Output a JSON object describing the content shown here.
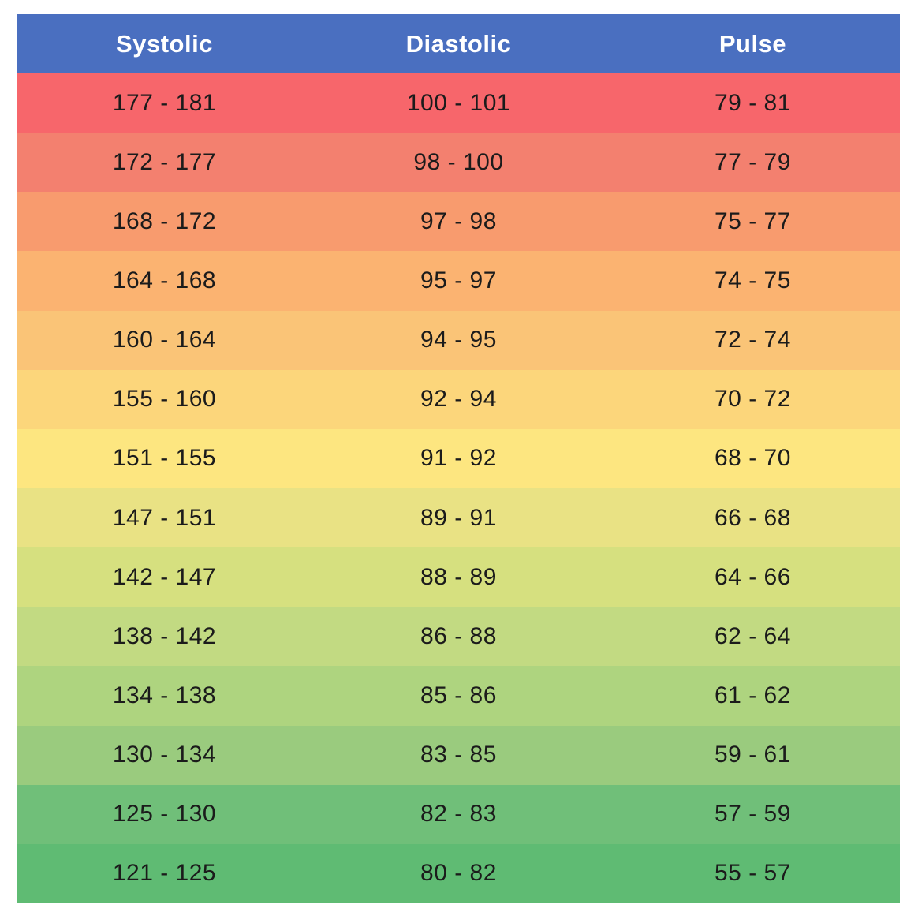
{
  "chart_data": {
    "type": "table",
    "columns": [
      "Systolic",
      "Diastolic",
      "Pulse"
    ],
    "rows": [
      [
        "177 - 181",
        "100 - 101",
        "79 - 81"
      ],
      [
        "172 - 177",
        "98 - 100",
        "77 - 79"
      ],
      [
        "168 - 172",
        "97 - 98",
        "75 - 77"
      ],
      [
        "164 - 168",
        "95 - 97",
        "74 - 75"
      ],
      [
        "160 - 164",
        "94 - 95",
        "72 - 74"
      ],
      [
        "155 - 160",
        "92 - 94",
        "70 - 72"
      ],
      [
        "151 - 155",
        "91 - 92",
        "68 - 70"
      ],
      [
        "147 - 151",
        "89 - 91",
        "66 - 68"
      ],
      [
        "142 - 147",
        "88 - 89",
        "64 - 66"
      ],
      [
        "138 - 142",
        "86 - 88",
        "62 - 64"
      ],
      [
        "134 - 138",
        "85 - 86",
        "61 - 62"
      ],
      [
        "130 - 134",
        "83 - 85",
        "59 - 61"
      ],
      [
        "125 - 130",
        "82 - 83",
        "57 - 59"
      ],
      [
        "121 - 125",
        "80 - 82",
        "55 - 57"
      ]
    ],
    "row_colors": [
      "#f7666b",
      "#f3806f",
      "#f89b6e",
      "#fbb371",
      "#fac477",
      "#fcd67b",
      "#fde680",
      "#e9e284",
      "#d6e07f",
      "#c2da82",
      "#aed47f",
      "#9acb7e",
      "#70bf79",
      "#5fbb73"
    ],
    "header_background": "#4a6fc0",
    "header_text_color": "#ffffff",
    "layout": {
      "legend": "none",
      "grid": "off"
    }
  }
}
